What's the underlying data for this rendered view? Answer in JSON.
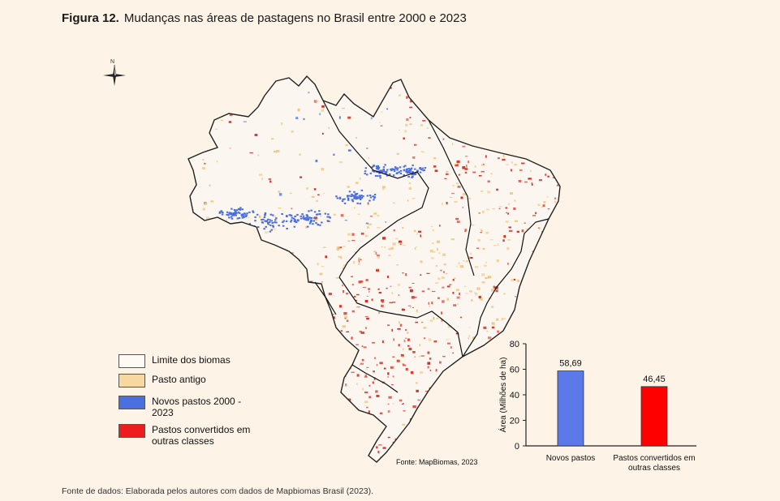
{
  "figure": {
    "label": "Figura 12.",
    "title": "Mudanças nas áreas de pastagens no Brasil entre 2000 e 2023"
  },
  "compass": {
    "north": "N"
  },
  "legend": {
    "items": [
      {
        "label": "Limite dos biomas",
        "color": "#fdfaf3"
      },
      {
        "label": "Pasto antigo",
        "color": "#f7d9a0"
      },
      {
        "label": "Novos pastos 2000 - 2023",
        "color": "#4a6fe0"
      },
      {
        "label": "Pastos convertidos em outras classes",
        "color": "#ee1c1c"
      }
    ]
  },
  "map_source": "Fonte: MapBiomas, 2023",
  "data_source": "Fonte de dados: Elaborada pelos autores com dados de Mapbiomas Brasil (2023).",
  "colors": {
    "background": "#fdf3e6",
    "map_fill": "#fbf7f0",
    "map_outline": "#222222",
    "old_pasture": "#f0c77e",
    "new_pasture": "#4a6fe0",
    "converted": "#d42a1e"
  },
  "chart_data": {
    "type": "bar",
    "categories": [
      "Novos pastos",
      "Pastos convertidos em outras classes"
    ],
    "category_lines": [
      [
        "Novos pastos"
      ],
      [
        "Pastos convertidos em",
        "outras classes"
      ]
    ],
    "values": [
      58.69,
      46.45
    ],
    "value_labels": [
      "58,69",
      "46,45"
    ],
    "colors": [
      "#5b79e8",
      "#ff0000"
    ],
    "ylabel": "Área (Milhões de ha)",
    "ylim": [
      0,
      80
    ],
    "yticks": [
      0,
      20,
      40,
      60,
      80
    ],
    "grid": false
  }
}
